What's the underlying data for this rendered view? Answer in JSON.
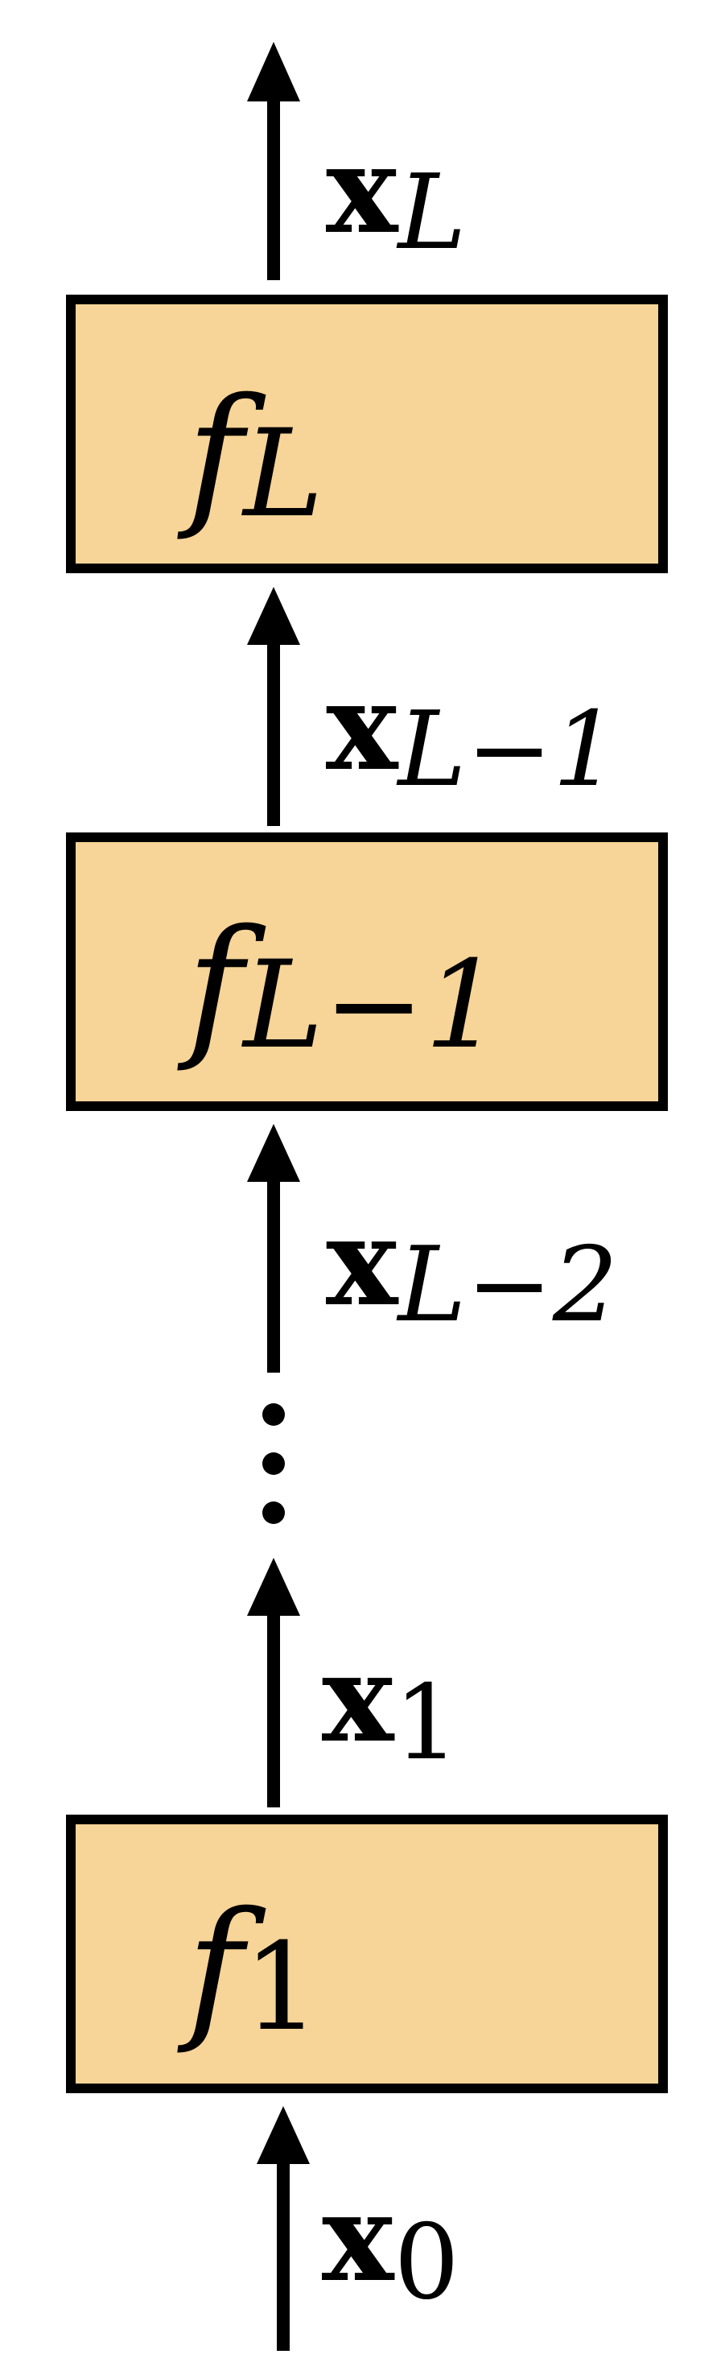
{
  "nodes": [
    {
      "id": "f_L",
      "symbol": "f",
      "subscript": "L"
    },
    {
      "id": "f_L-1",
      "symbol": "f",
      "subscript": "L−1"
    },
    {
      "id": "f_1",
      "symbol": "f",
      "subscript": "1"
    }
  ],
  "edges": [
    {
      "symbol": "x",
      "subscript": "L"
    },
    {
      "symbol": "x",
      "subscript": "L−1"
    },
    {
      "symbol": "x",
      "subscript": "L−2"
    },
    {
      "symbol": "x",
      "subscript": "1"
    },
    {
      "symbol": "x",
      "subscript": "0"
    }
  ],
  "colors": {
    "box_fill": "#f7d497",
    "stroke": "#000000"
  }
}
